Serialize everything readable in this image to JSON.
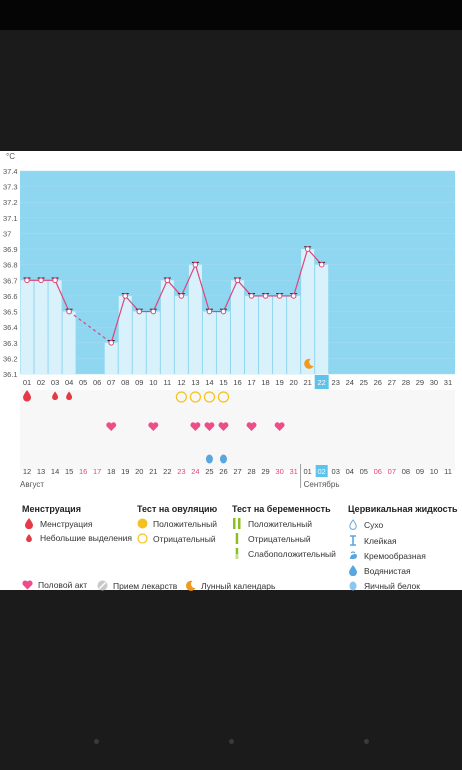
{
  "chart_data": {
    "type": "line",
    "ylabel": "°C",
    "ylim": [
      36.1,
      37.4
    ],
    "yticks": [
      37.4,
      37.3,
      37.2,
      37.1,
      37,
      36.9,
      36.8,
      36.7,
      36.6,
      36.5,
      36.4,
      36.3,
      36.2,
      36.1
    ],
    "cycle_days": [
      "01",
      "02",
      "03",
      "04",
      "05",
      "06",
      "07",
      "08",
      "09",
      "10",
      "11",
      "12",
      "13",
      "14",
      "15",
      "16",
      "17",
      "18",
      "19",
      "20",
      "21",
      "22",
      "23",
      "24",
      "25",
      "26",
      "27",
      "28",
      "29",
      "30",
      "31"
    ],
    "selected_cycle_day": "22",
    "series": [
      {
        "values": [
          36.7,
          36.7,
          36.7,
          36.5,
          null,
          null,
          36.3,
          36.6,
          36.5,
          36.5,
          36.7,
          36.6,
          36.8,
          36.5,
          36.5,
          36.7,
          36.6,
          36.6,
          36.6,
          36.6,
          36.9,
          36.8,
          null,
          null,
          null,
          null,
          null,
          null,
          null,
          null,
          null
        ]
      }
    ],
    "dates": [
      "12",
      "13",
      "14",
      "15",
      "16",
      "17",
      "18",
      "19",
      "20",
      "21",
      "22",
      "23",
      "24",
      "25",
      "26",
      "27",
      "28",
      "29",
      "30",
      "31",
      "01",
      "02",
      "03",
      "04",
      "05",
      "06",
      "07",
      "08",
      "09",
      "10",
      "11"
    ],
    "weekend_dates": [
      4,
      5,
      11,
      12,
      18,
      19,
      25,
      26
    ],
    "month_labels": [
      "Август",
      "Сентябрь"
    ],
    "selected_date": "02",
    "menstruation_days": [
      1,
      3,
      4
    ],
    "ovulation_negative_days": [
      12,
      13,
      14,
      15
    ],
    "intercourse_days": [
      7,
      10,
      13,
      14,
      15,
      17,
      19
    ],
    "fluid_days": [
      14,
      15
    ],
    "moon_day": 21
  },
  "legend": {
    "menstruation": {
      "title": "Менструация",
      "items": [
        "Менструация",
        "Небольшие выделения"
      ]
    },
    "ovulation_test": {
      "title": "Тест на овуляцию",
      "items": [
        "Положительный",
        "Отрицательный"
      ]
    },
    "pregnancy_test": {
      "title": "Тест на беременность",
      "items": [
        "Положительный",
        "Отрицательный",
        "Слабоположительный"
      ]
    },
    "cervical_fluid": {
      "title": "Цервикальная жидкость",
      "items": [
        "Сухо",
        "Клейкая",
        "Кремообразная",
        "Водянистая",
        "Яичный белок"
      ]
    },
    "bottom": [
      "Половой акт",
      "Прием лекарств",
      "Лунный календарь"
    ]
  },
  "colors": {
    "chart_fill": "#8fd6f0",
    "bar_fill": "#d8f1fb",
    "line": "#e0457b",
    "selected": "#5ec2ea",
    "weekend": "#e0457b",
    "heart": "#ee4d8a",
    "blood": "#e63946",
    "ovulation": "#f4c21f",
    "moon": "#f29a1c",
    "fluid": "#5aa7e0"
  }
}
